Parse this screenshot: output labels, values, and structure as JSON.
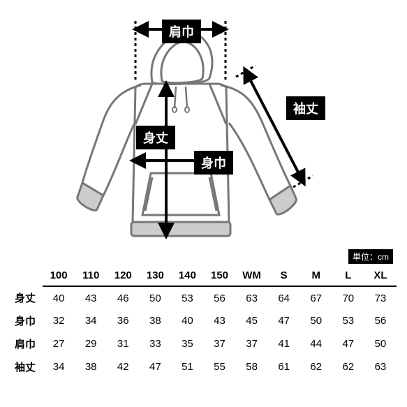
{
  "diagram": {
    "labels": {
      "shoulder": "肩巾",
      "length": "身丈",
      "sleeve": "袖丈",
      "width": "身巾"
    },
    "unit_label": "単位：cm",
    "outline_color": "#777777",
    "arrow_color": "#000000",
    "dash_color": "#000000",
    "ribbing_fill": "#cccccc",
    "stroke_width": 3,
    "arrow_stroke_width": 4
  },
  "table": {
    "sizes": [
      "100",
      "110",
      "120",
      "130",
      "140",
      "150",
      "WM",
      "S",
      "M",
      "L",
      "XL"
    ],
    "rows": [
      {
        "label": "身丈",
        "values": [
          40,
          43,
          46,
          50,
          53,
          56,
          63,
          64,
          67,
          70,
          73
        ]
      },
      {
        "label": "身巾",
        "values": [
          32,
          34,
          36,
          38,
          40,
          43,
          45,
          47,
          50,
          53,
          56
        ]
      },
      {
        "label": "肩巾",
        "values": [
          27,
          29,
          31,
          33,
          35,
          37,
          37,
          41,
          44,
          47,
          50
        ]
      },
      {
        "label": "袖丈",
        "values": [
          34,
          38,
          42,
          47,
          51,
          55,
          58,
          61,
          62,
          62,
          63
        ]
      }
    ]
  },
  "colors": {
    "text": "#000000",
    "background": "#ffffff",
    "border": "#000000"
  }
}
